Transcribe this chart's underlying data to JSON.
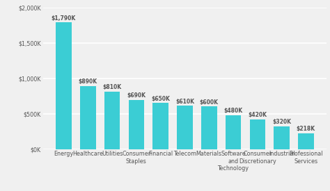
{
  "categories": [
    "Energy",
    "Healthcare",
    "Utilities",
    "Consumer\nStaples",
    "Financial",
    "Telecom",
    "Materials",
    "Software\nand\nTechnology",
    "Consumer\nDiscretionary",
    "Industrial",
    "Professional\nServices"
  ],
  "values": [
    1790000,
    890000,
    810000,
    690000,
    650000,
    610000,
    600000,
    480000,
    420000,
    320000,
    218000
  ],
  "labels": [
    "$1,790K",
    "$890K",
    "$810K",
    "$690K",
    "$650K",
    "$610K",
    "$600K",
    "$480K",
    "$420K",
    "$320K",
    "$218K"
  ],
  "bar_color": "#3bcdd4",
  "background_color": "#f0f0f0",
  "ylim": [
    0,
    2000000
  ],
  "yticks": [
    0,
    500000,
    1000000,
    1500000,
    2000000
  ],
  "ytick_labels": [
    "$0K",
    "$500K",
    "$1,000K",
    "$1,500K",
    "$2,000K"
  ],
  "grid_color": "#ffffff",
  "text_color": "#555555",
  "label_fontsize": 5.5,
  "tick_fontsize": 5.8,
  "bar_width": 0.65
}
